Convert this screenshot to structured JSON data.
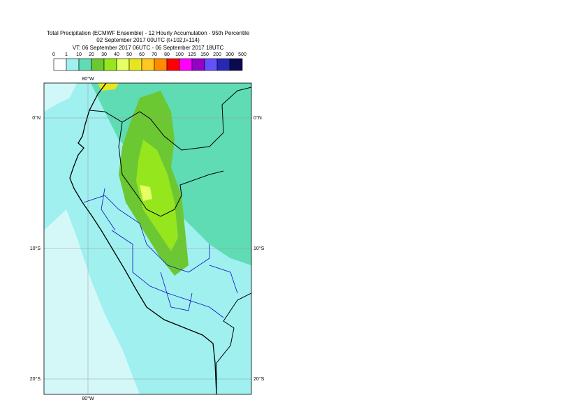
{
  "header": {
    "lines": [
      "Total Precipitation (ECMWF Ensemble) - 12 Hourly Accumulation - 95th Percentile",
      "02 September 2017 00UTC (t+102,t+114)",
      "VT: 06 September 2017 06UTC - 06 September 2017 18UTC"
    ]
  },
  "legend": {
    "ticks": [
      0,
      1,
      10,
      20,
      30,
      40,
      50,
      60,
      70,
      80,
      100,
      125,
      150,
      200,
      300,
      500
    ],
    "colors": [
      "#ffffff",
      "#a0f0f0",
      "#5fdcb4",
      "#6cc832",
      "#96e61e",
      "#e6ff64",
      "#e6e61e",
      "#ffc81e",
      "#ff8c00",
      "#ff0000",
      "#ff00ff",
      "#9600c8",
      "#6450ff",
      "#2828b4",
      "#0a0a50"
    ]
  },
  "map": {
    "top_label": "80°W",
    "bottom_label": "80°W",
    "lat_labels": [
      "0°N",
      "10°S",
      "20°S"
    ]
  }
}
